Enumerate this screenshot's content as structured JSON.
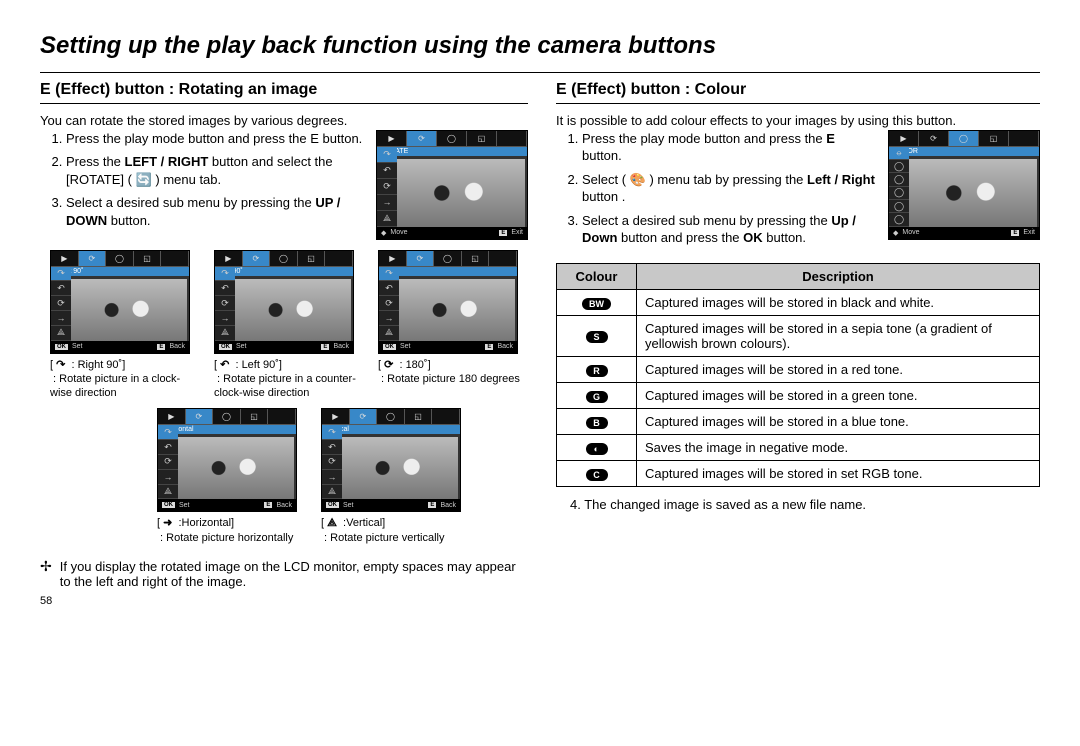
{
  "page_title": "Setting up the play back function using the camera buttons",
  "page_number": "58",
  "left": {
    "heading": "E (Effect) button : Rotating an image",
    "intro": "You can rotate the stored images by various degrees.",
    "steps": [
      "Press the play mode button and press the E button.",
      "Press the LEFT / RIGHT button and select the [ROTATE] ( 🔄 ) menu tab.",
      "Select a desired sub menu by pressing the UP / DOWN button."
    ],
    "lcd_main": {
      "label": "ROTATE",
      "foot_left": "Move",
      "foot_right": "Exit"
    },
    "rotations": [
      {
        "lcd": "Right 90˚",
        "sym": "↷",
        "name": ": Right 90˚]",
        "desc": ": Rotate picture in a clock-wise direction"
      },
      {
        "lcd": "Left 90˚",
        "sym": "↶",
        "name": ": Left 90˚]",
        "desc": ": Rotate picture in a counter-clock-wise direction"
      },
      {
        "lcd": "180˚",
        "sym": "⟳",
        "name": ": 180˚]",
        "desc": ": Rotate picture 180 degrees"
      }
    ],
    "rotations2": [
      {
        "lcd": "Horizontal",
        "sym": "➜",
        "name": ":Horizontal]",
        "desc": ": Rotate picture horizontally"
      },
      {
        "lcd": "Vertical",
        "sym": "⟁",
        "name": ":Vertical]",
        "desc": ": Rotate picture vertically"
      }
    ],
    "lcd_sub_foot": {
      "k1": "OK",
      "l1": "Set",
      "k2": "E",
      "l2": "Back"
    },
    "note": "If you display the rotated image on the LCD monitor, empty spaces may appear to the left and right of the image."
  },
  "right": {
    "heading": "E (Effect) button : Colour",
    "intro": "It is possible to add colour effects to your images by using this button.",
    "steps": [
      "Press the play mode button and press the E button.",
      "Select ( 🎨 ) menu tab by pressing the Left / Right button .",
      "Select a desired sub menu by pressing the Up / Down button and press the OK button."
    ],
    "lcd_main": {
      "label": "COLOR",
      "foot_left": "Move",
      "foot_right": "Exit"
    },
    "table": {
      "head": [
        "Colour",
        "Description"
      ],
      "rows": [
        {
          "icon": "BW",
          "txt": "Captured images will be stored in   black and white."
        },
        {
          "icon": "S",
          "txt": "Captured images will be stored in a sepia tone (a gradient of yellowish brown colours)."
        },
        {
          "icon": "R",
          "txt": "Captured images will be stored in a red tone."
        },
        {
          "icon": "G",
          "txt": "Captured images will be stored in a green tone."
        },
        {
          "icon": "B",
          "txt": "Captured images will be stored in a blue tone."
        },
        {
          "icon": "◐",
          "txt": "Saves the image in negative mode."
        },
        {
          "icon": "C",
          "txt": "Captured images will be stored in set RGB tone."
        }
      ]
    },
    "step4": "4. The changed image is saved as a new file name."
  }
}
